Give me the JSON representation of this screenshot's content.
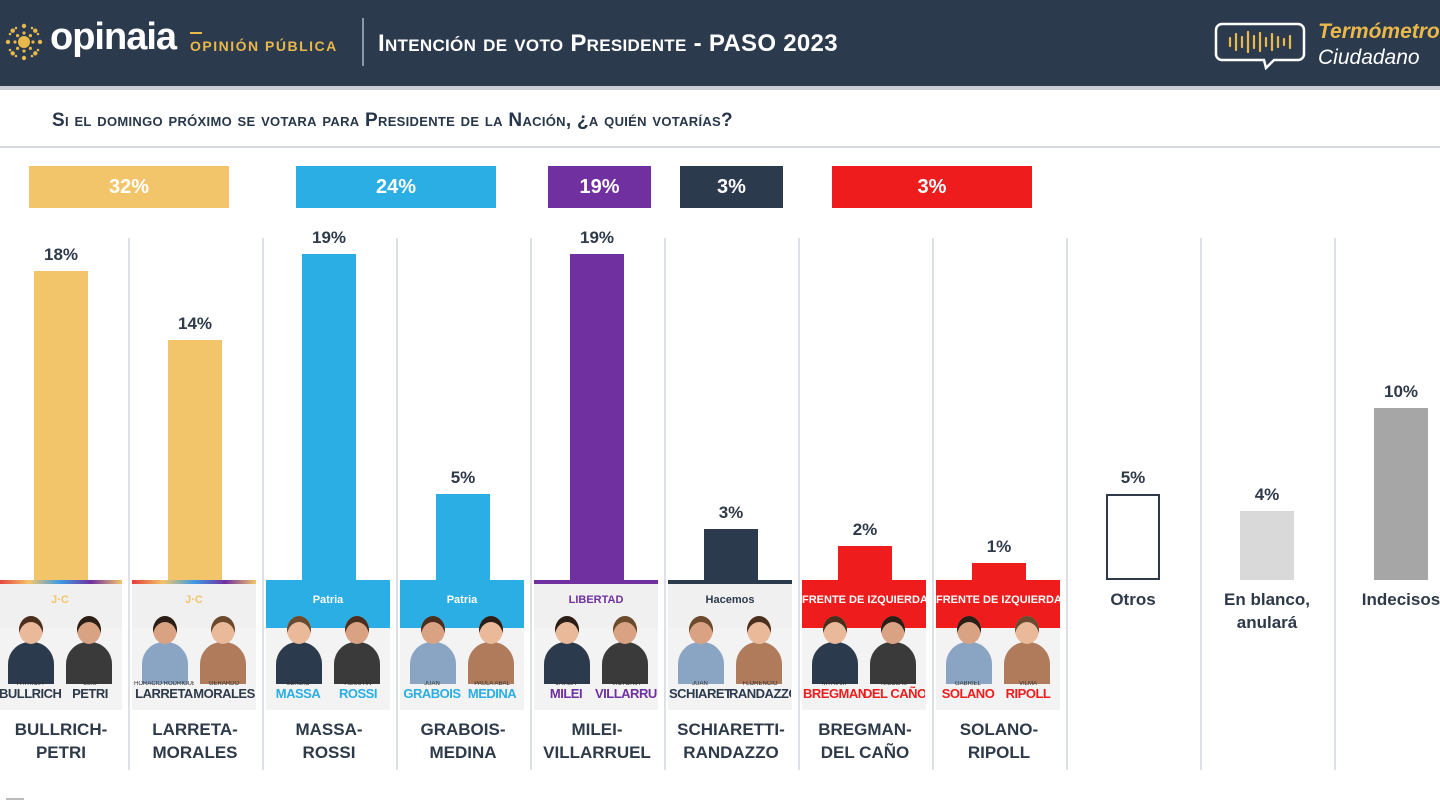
{
  "header": {
    "logo_name": "opinaia",
    "logo_sub": "OPINIÓN PÚBLICA",
    "title": "Intención de voto Presidente - PASO 2023",
    "brand_line1": "Termómetro",
    "brand_line2": "Ciudadano"
  },
  "question": "Si el domingo próximo se votara para Presidente de la Nación, ¿a quién votarías?",
  "colors": {
    "header_bg": "#2c3a4e",
    "jxc": "#f3c56a",
    "uxp": "#2aaee3",
    "lla": "#7030a0",
    "hacemos": "#2c3a4e",
    "fit": "#ee1c1c",
    "otros": "#ffffff",
    "blanco": "#d9d9d9",
    "indecisos": "#a6a6a6"
  },
  "groups": [
    {
      "label": "32%",
      "color": "#f3c56a"
    },
    {
      "label": "24%",
      "color": "#2aaee3"
    },
    {
      "label": "19%",
      "color": "#7030a0"
    },
    {
      "label": "3%",
      "color": "#2c3a4e"
    },
    {
      "label": "3%",
      "color": "#ee1c1c"
    }
  ],
  "cards": [
    {
      "party": "J·C",
      "party_color": "#f3c56a",
      "band": "#f0f0f0",
      "text": "#f3c56a",
      "first1": "PATRICIA",
      "last1": "BULLRICH",
      "first2": "LUIS",
      "last2": "PETRI",
      "namecolor": "#2e3a4a"
    },
    {
      "party": "J·C",
      "party_color": "#f3c56a",
      "band": "#f0f0f0",
      "text": "#f3c56a",
      "first1": "HORACIO RODRÍGUEZ",
      "last1": "LARRETA",
      "first2": "GERARDO",
      "last2": "MORALES",
      "namecolor": "#2e3a4a"
    },
    {
      "party": "Patria",
      "party_color": "#2aaee3",
      "band": "#2aaee3",
      "text": "#ffffff",
      "first1": "SERGIO",
      "last1": "MASSA",
      "first2": "AGUSTÍN",
      "last2": "ROSSI",
      "namecolor": "#2aaee3"
    },
    {
      "party": "Patria",
      "party_color": "#2aaee3",
      "band": "#2aaee3",
      "text": "#ffffff",
      "first1": "JUAN",
      "last1": "GRABOIS",
      "first2": "PAULA ABAL",
      "last2": "MEDINA",
      "namecolor": "#2aaee3"
    },
    {
      "party": "LIBERTAD",
      "party_color": "#7030a0",
      "band": "#f0f0f0",
      "text": "#7030a0",
      "first1": "JAVIER",
      "last1": "MILEI",
      "first2": "VICTORIA",
      "last2": "VILLARRUEL",
      "namecolor": "#7030a0"
    },
    {
      "party": "Hacemos",
      "party_color": "#2c3a4e",
      "band": "#f0f0f0",
      "text": "#2c3a4e",
      "first1": "JUAN",
      "last1": "SCHIARETTI",
      "first2": "FLORENCIO",
      "last2": "RANDAZZO",
      "namecolor": "#2c3a4e"
    },
    {
      "party": "FRENTE DE IZQUIERDA",
      "party_color": "#ee1c1c",
      "band": "#ee1c1c",
      "text": "#ffffff",
      "first1": "MYRIAM",
      "last1": "BREGMAN",
      "first2": "NICOLÁS",
      "last2": "DEL CAÑO",
      "namecolor": "#ee1c1c"
    },
    {
      "party": "FRENTE DE IZQUIERDA",
      "party_color": "#ee1c1c",
      "band": "#ee1c1c",
      "text": "#ffffff",
      "first1": "GABRIEL",
      "last1": "SOLANO",
      "first2": "VILMA",
      "last2": "RIPOLL",
      "namecolor": "#ee1c1c"
    }
  ],
  "chart_data": {
    "type": "bar",
    "title": "Intención de voto Presidente - PASO 2023",
    "subtitle": "Si el domingo próximo se votara para Presidente de la Nación, ¿a quién votarías?",
    "categories": [
      "BULLRICH-\nPETRI",
      "LARRETA-\nMORALES",
      "MASSA-\nROSSI",
      "GRABOIS-\nMEDINA",
      "MILEI-\nVILLARRUEL",
      "SCHIARETTI-\nRANDAZZO",
      "BREGMAN-\nDEL CAÑO",
      "SOLANO-\nRIPOLL",
      "Otros",
      "En blanco,\nanulará",
      "Indecisos"
    ],
    "values": [
      18,
      14,
      19,
      5,
      19,
      3,
      2,
      1,
      5,
      4,
      10
    ],
    "value_labels": [
      "18%",
      "14%",
      "19%",
      "5%",
      "19%",
      "3%",
      "2%",
      "1%",
      "5%",
      "4%",
      "10%"
    ],
    "bar_colors": [
      "#f3c56a",
      "#f3c56a",
      "#2aaee3",
      "#2aaee3",
      "#7030a0",
      "#2c3a4e",
      "#ee1c1c",
      "#ee1c1c",
      "#ffffff",
      "#d9d9d9",
      "#a6a6a6"
    ],
    "group_totals": [
      {
        "label": "32%",
        "value": 32,
        "members": [
          0,
          1
        ]
      },
      {
        "label": "24%",
        "value": 24,
        "members": [
          2,
          3
        ]
      },
      {
        "label": "19%",
        "value": 19,
        "members": [
          4
        ]
      },
      {
        "label": "3%",
        "value": 3,
        "members": [
          5
        ]
      },
      {
        "label": "3%",
        "value": 3,
        "members": [
          6,
          7
        ]
      }
    ],
    "ylim": [
      0,
      20
    ],
    "grid": false,
    "legend": "none",
    "xlabel": "",
    "ylabel": ""
  }
}
